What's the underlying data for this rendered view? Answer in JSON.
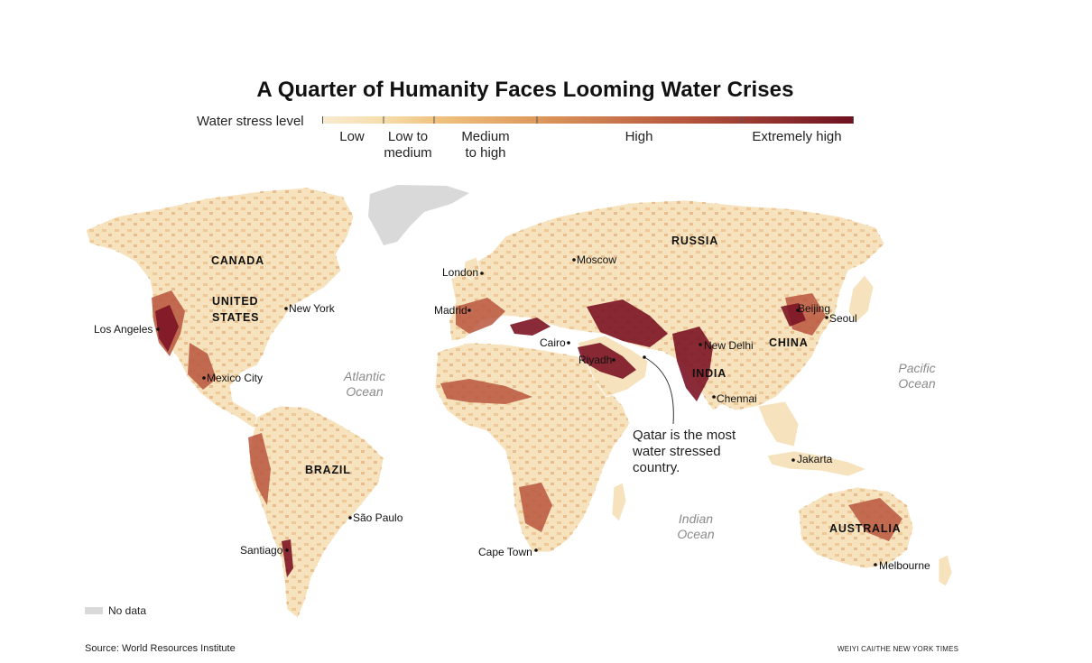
{
  "title": "A Quarter of Humanity Faces Looming Water Crises",
  "legend": {
    "label": "Water stress level",
    "categories": [
      {
        "label": "Low",
        "color": "#f6e3bd"
      },
      {
        "label": "Low to\nmedium",
        "color": "#efc17f"
      },
      {
        "label": "Medium\nto high",
        "color": "#dd9a5d"
      },
      {
        "label": "High",
        "color": "#b8563e"
      },
      {
        "label": "Extremely high",
        "color": "#7c1424"
      }
    ],
    "no_data_label": "No data",
    "no_data_color": "#d9d9d9"
  },
  "countries": [
    {
      "name": "CANADA"
    },
    {
      "name": "UNITED"
    },
    {
      "name": "STATES"
    },
    {
      "name": "BRAZIL"
    },
    {
      "name": "RUSSIA"
    },
    {
      "name": "CHINA"
    },
    {
      "name": "INDIA"
    },
    {
      "name": "AUSTRALIA"
    }
  ],
  "cities": [
    {
      "name": "New York"
    },
    {
      "name": "Los Angeles"
    },
    {
      "name": "Mexico City"
    },
    {
      "name": "São Paulo"
    },
    {
      "name": "Santiago"
    },
    {
      "name": "London"
    },
    {
      "name": "Moscow"
    },
    {
      "name": "Madrid"
    },
    {
      "name": "Cairo"
    },
    {
      "name": "Riyadh"
    },
    {
      "name": "New Delhi"
    },
    {
      "name": "Chennai"
    },
    {
      "name": "Beijing"
    },
    {
      "name": "Seoul"
    },
    {
      "name": "Jakarta"
    },
    {
      "name": "Cape Town"
    },
    {
      "name": "Melbourne"
    }
  ],
  "oceans": [
    {
      "line1": "Atlantic",
      "line2": "Ocean"
    },
    {
      "line1": "Pacific",
      "line2": "Ocean"
    },
    {
      "line1": "Indian",
      "line2": "Ocean"
    }
  ],
  "annotation": {
    "line1": "Qatar is the most",
    "line2": "water stressed",
    "line3": "country."
  },
  "source": "Source: World Resources Institute",
  "credit": "WEIYI CAI/THE NEW YORK TIMES"
}
